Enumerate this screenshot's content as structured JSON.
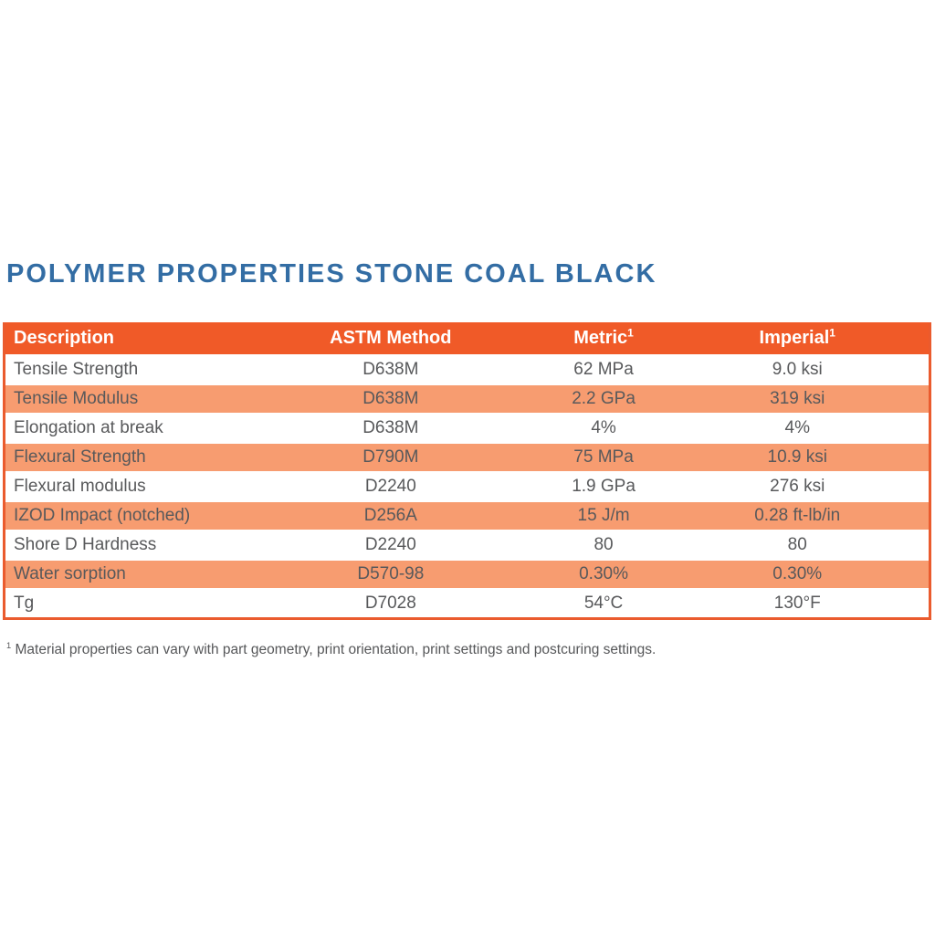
{
  "page": {
    "title": "POLYMER PROPERTIES STONE COAL BLACK"
  },
  "table": {
    "headers": [
      {
        "key": "description",
        "label": "Description",
        "sup": ""
      },
      {
        "key": "astm_method",
        "label": "ASTM Method",
        "sup": ""
      },
      {
        "key": "metric",
        "label": "Metric",
        "sup": "1"
      },
      {
        "key": "imperial",
        "label": "Imperial",
        "sup": "1"
      }
    ],
    "rows": [
      {
        "description": "Tensile Strength",
        "astm_method": "D638M",
        "metric": "62 MPa",
        "imperial": "9.0 ksi"
      },
      {
        "description": "Tensile Modulus",
        "astm_method": "D638M",
        "metric": "2.2 GPa",
        "imperial": "319 ksi"
      },
      {
        "description": "Elongation at break",
        "astm_method": "D638M",
        "metric": "4%",
        "imperial": "4%"
      },
      {
        "description": "Flexural Strength",
        "astm_method": "D790M",
        "metric": "75 MPa",
        "imperial": "10.9 ksi"
      },
      {
        "description": "Flexural modulus",
        "astm_method": "D2240",
        "metric": "1.9 GPa",
        "imperial": "276 ksi"
      },
      {
        "description": "IZOD Impact (notched)",
        "astm_method": "D256A",
        "metric": "15 J/m",
        "imperial": "0.28 ft-lb/in"
      },
      {
        "description": "Shore D Hardness",
        "astm_method": "D2240",
        "metric": "80",
        "imperial": "80"
      },
      {
        "description": "Water sorption",
        "astm_method": "D570-98",
        "metric": "0.30%",
        "imperial": "0.30%"
      },
      {
        "description": "Tg",
        "astm_method": "D7028",
        "metric": "54°C",
        "imperial": "130°F"
      }
    ]
  },
  "footnote": {
    "sup": "1",
    "text": "Material properties can vary with part geometry, print orientation, print settings and postcuring settings."
  },
  "chart_data": {
    "type": "table",
    "title": "POLYMER PROPERTIES STONE COAL BLACK",
    "columns": [
      "Description",
      "ASTM Method",
      "Metric",
      "Imperial"
    ],
    "rows": [
      [
        "Tensile Strength",
        "D638M",
        "62 MPa",
        "9.0 ksi"
      ],
      [
        "Tensile Modulus",
        "D638M",
        "2.2 GPa",
        "319 ksi"
      ],
      [
        "Elongation at break",
        "D638M",
        "4%",
        "4%"
      ],
      [
        "Flexural Strength",
        "D790M",
        "75 MPa",
        "10.9 ksi"
      ],
      [
        "Flexural modulus",
        "D2240",
        "1.9 GPa",
        "276 ksi"
      ],
      [
        "IZOD Impact (notched)",
        "D256A",
        "15 J/m",
        "0.28 ft-lb/in"
      ],
      [
        "Shore D Hardness",
        "D2240",
        "80",
        "80"
      ],
      [
        "Water sorption",
        "D570-98",
        "0.30%",
        "0.30%"
      ],
      [
        "Tg",
        "D7028",
        "54°C",
        "130°F"
      ]
    ]
  },
  "colors": {
    "header_bg": "#F05A28",
    "row_alt_bg": "#F79C70",
    "row_bg": "#FFFFFF",
    "border": "#EA5B2E",
    "title": "#336DA4",
    "text": "#58595B",
    "header_text": "#FFFFFF",
    "footnote_text": "#565759"
  }
}
